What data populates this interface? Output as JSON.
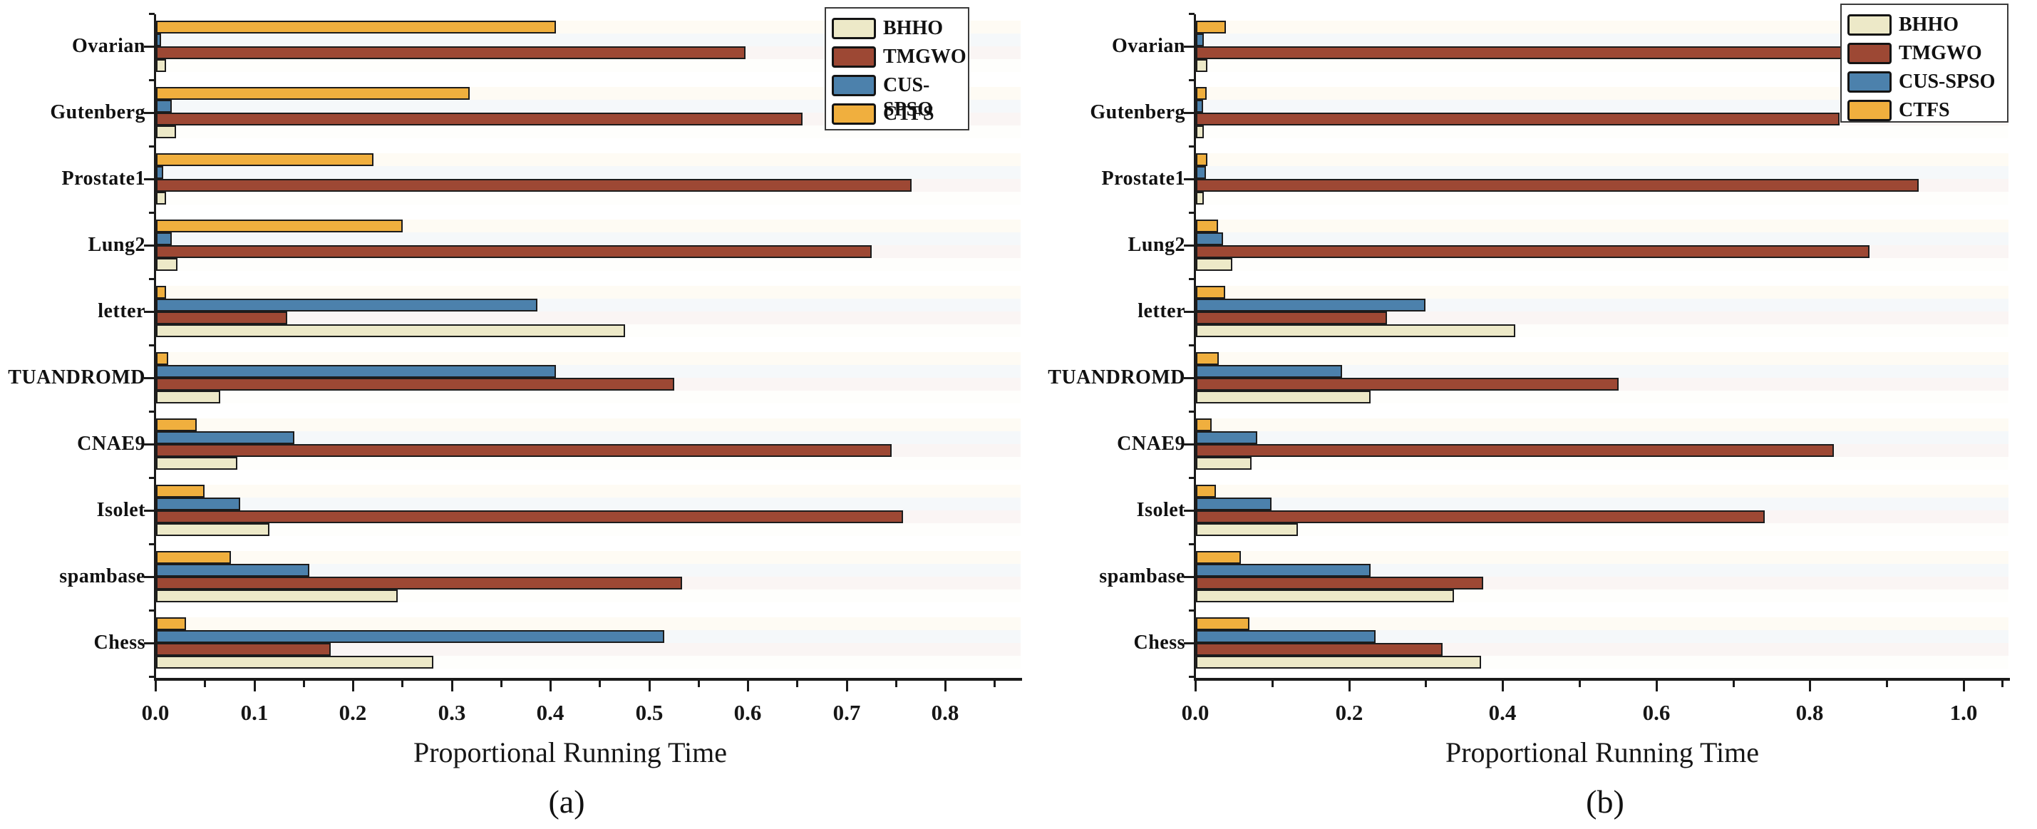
{
  "figure": {
    "xlabel": "Proportional Running Time",
    "captions": [
      "(a)",
      "(b)"
    ],
    "legend_labels": [
      "BHHO",
      "TMGWO",
      "CUS-SPSO",
      "CTFS"
    ]
  },
  "colors": {
    "BHHO": "#EDE9C8",
    "TMGWO": "#9D4834",
    "CUS-SPSO": "#4C81AC",
    "CTFS": "#F0AF3E",
    "bar_border": "#1c1c1c",
    "axis": "#1a1a1a",
    "background": "#ffffff"
  },
  "chart_data": [
    {
      "type": "bar",
      "orientation": "horizontal",
      "caption": "(a)",
      "title": "",
      "xlabel": "Proportional Running Time",
      "ylabel": "",
      "xlim": [
        0,
        0.875
      ],
      "grid": false,
      "legend_position": "upper-right-inside",
      "legend_entries": [
        "BHHO",
        "TMGWO",
        "CUS-SPSO",
        "CTFS"
      ],
      "x_tick_labels": [
        "0.0",
        "0.1",
        "0.2",
        "0.3",
        "0.4",
        "0.5",
        "0.6",
        "0.7",
        "0.8"
      ],
      "x_tick_values": [
        0.0,
        0.1,
        0.2,
        0.3,
        0.4,
        0.5,
        0.6,
        0.7,
        0.8
      ],
      "x_minor_tick_values": [
        0.05,
        0.15,
        0.25,
        0.35,
        0.45,
        0.55,
        0.65,
        0.75,
        0.85
      ],
      "categories": [
        "Ovarian",
        "Gutenberg",
        "Prostate1",
        "Lung2",
        "letter",
        "TUANDROMD",
        "CNAE9",
        "Isolet",
        "spambase",
        "Chess"
      ],
      "bar_order_in_group_top_to_bottom": [
        "CTFS",
        "CUS-SPSO",
        "TMGWO",
        "BHHO"
      ],
      "series": [
        {
          "name": "BHHO",
          "values": [
            0.01,
            0.02,
            0.01,
            0.022,
            0.475,
            0.065,
            0.082,
            0.115,
            0.245,
            0.281
          ]
        },
        {
          "name": "TMGWO",
          "values": [
            0.597,
            0.655,
            0.765,
            0.725,
            0.133,
            0.525,
            0.745,
            0.757,
            0.533,
            0.177
          ]
        },
        {
          "name": "CUS-SPSO",
          "values": [
            0.005,
            0.016,
            0.007,
            0.016,
            0.386,
            0.405,
            0.14,
            0.085,
            0.155,
            0.515
          ]
        },
        {
          "name": "CTFS",
          "values": [
            0.405,
            0.318,
            0.22,
            0.25,
            0.01,
            0.012,
            0.041,
            0.049,
            0.076,
            0.03
          ]
        }
      ]
    },
    {
      "type": "bar",
      "orientation": "horizontal",
      "caption": "(b)",
      "title": "",
      "xlabel": "Proportional Running Time",
      "ylabel": "",
      "xlim": [
        0,
        1.06
      ],
      "grid": false,
      "legend_position": "upper-right-inside",
      "legend_entries": [
        "BHHO",
        "TMGWO",
        "CUS-SPSO",
        "CTFS"
      ],
      "x_tick_labels": [
        "0.0",
        "0.2",
        "0.4",
        "0.6",
        "0.8",
        "1.0"
      ],
      "x_tick_values": [
        0.0,
        0.2,
        0.4,
        0.6,
        0.8,
        1.0
      ],
      "x_minor_tick_values": [
        0.1,
        0.3,
        0.5,
        0.7,
        0.9,
        1.05
      ],
      "categories": [
        "Ovarian",
        "Gutenberg",
        "Prostate1",
        "Lung2",
        "letter",
        "TUANDROMD",
        "CNAE9",
        "Isolet",
        "spambase",
        "Chess"
      ],
      "bar_order_in_group_top_to_bottom": [
        "CTFS",
        "CUS-SPSO",
        "TMGWO",
        "BHHO"
      ],
      "series": [
        {
          "name": "BHHO",
          "values": [
            0.015,
            0.01,
            0.01,
            0.047,
            0.416,
            0.227,
            0.072,
            0.133,
            0.336,
            0.371
          ]
        },
        {
          "name": "TMGWO",
          "values": [
            0.84,
            0.838,
            0.941,
            0.877,
            0.249,
            0.55,
            0.83,
            0.74,
            0.374,
            0.321
          ]
        },
        {
          "name": "CUS-SPSO",
          "values": [
            0.01,
            0.009,
            0.013,
            0.035,
            0.299,
            0.19,
            0.08,
            0.098,
            0.227,
            0.234
          ]
        },
        {
          "name": "CTFS",
          "values": [
            0.039,
            0.014,
            0.015,
            0.029,
            0.038,
            0.03,
            0.02,
            0.026,
            0.058,
            0.07
          ]
        }
      ]
    }
  ]
}
